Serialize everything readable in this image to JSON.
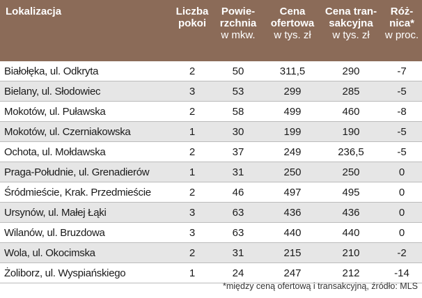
{
  "table": {
    "columns": [
      {
        "lines": [
          "Lokalizacja"
        ]
      },
      {
        "lines": [
          "Liczba",
          "pokoi"
        ]
      },
      {
        "lines": [
          "Powie-",
          "rzchnia"
        ],
        "unit": "w mkw."
      },
      {
        "lines": [
          "Cena",
          "ofertowa"
        ],
        "unit": "w tys. zł"
      },
      {
        "lines": [
          "Cena tran-",
          "sakcyjna"
        ],
        "unit": "w tys. zł"
      },
      {
        "lines": [
          "Róż-",
          "nica*"
        ],
        "unit": "w proc."
      }
    ],
    "rows": [
      [
        "Białołęka, ul. Odkryta",
        "2",
        "50",
        "311,5",
        "290",
        "-7"
      ],
      [
        "Bielany, ul. Słodowiec",
        "3",
        "53",
        "299",
        "285",
        "-5"
      ],
      [
        "Mokotów, ul. Puławska",
        "2",
        "58",
        "499",
        "460",
        "-8"
      ],
      [
        "Mokotów, ul. Czerniakowska",
        "1",
        "30",
        "199",
        "190",
        "-5"
      ],
      [
        "Ochota, ul. Mołdawska",
        "2",
        "37",
        "249",
        "236,5",
        "-5"
      ],
      [
        "Praga-Południe, ul. Grenadierów",
        "1",
        "31",
        "250",
        "250",
        "0"
      ],
      [
        "Śródmieście, Krak. Przedmieście",
        "2",
        "46",
        "497",
        "495",
        "0"
      ],
      [
        "Ursynów, ul. Małej Łąki",
        "3",
        "63",
        "436",
        "436",
        "0"
      ],
      [
        "Wilanów, ul. Bruzdowa",
        "3",
        "63",
        "440",
        "440",
        "0"
      ],
      [
        "Wola, ul. Okocimska",
        "2",
        "31",
        "215",
        "210",
        "-2"
      ],
      [
        "Żoliborz, ul. Wyspiańskiego",
        "1",
        "24",
        "247",
        "212",
        "-14"
      ]
    ]
  },
  "footnote": "*między ceną ofertową i transakcyjną, źródło: MLS"
}
